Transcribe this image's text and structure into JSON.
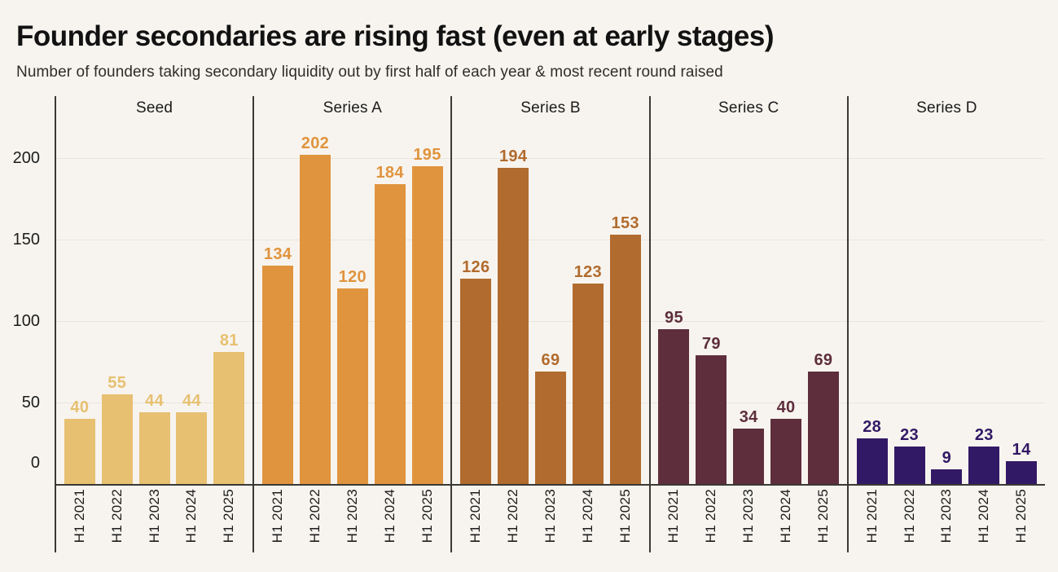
{
  "header": {
    "title": "Founder secondaries are rising fast (even at early stages)",
    "subtitle": "Number of founders taking secondary liquidity out by first half of each year & most recent round raised"
  },
  "colors": {
    "background": "#f7f4ef",
    "axis_line": "#3b3936",
    "gridline": "#e9e5dd",
    "text": "#1a1a1a",
    "seed": "#e7c071",
    "series_a": "#e0943e",
    "series_b": "#b16b2e",
    "series_c": "#5e2e3d",
    "series_d": "#321965"
  },
  "chart_data": {
    "type": "bar",
    "title": "Founder secondaries are rising fast (even at early stages)",
    "subtitle": "Number of founders taking secondary liquidity out by first half of each year & most recent round raised",
    "categories": [
      "H1 2021",
      "H1 2022",
      "H1 2023",
      "H1 2024",
      "H1 2025"
    ],
    "series": [
      {
        "name": "Seed",
        "color": "#e7c071",
        "values": [
          40,
          55,
          44,
          44,
          81
        ]
      },
      {
        "name": "Series A",
        "color": "#e0943e",
        "values": [
          134,
          202,
          120,
          184,
          195
        ]
      },
      {
        "name": "Series B",
        "color": "#b16b2e",
        "values": [
          126,
          194,
          69,
          123,
          153
        ]
      },
      {
        "name": "Series C",
        "color": "#5e2e3d",
        "values": [
          95,
          79,
          34,
          40,
          69
        ]
      },
      {
        "name": "Series D",
        "color": "#321965",
        "values": [
          28,
          23,
          9,
          23,
          14
        ]
      }
    ],
    "xlabel": "",
    "ylabel": "",
    "y_ticks": [
      0,
      50,
      100,
      150,
      200
    ],
    "ylim": [
      0,
      238
    ],
    "grid": "horizontal",
    "legend": "none",
    "value_labels": true,
    "x_tick_rotation": -90,
    "group_dividers": true
  }
}
